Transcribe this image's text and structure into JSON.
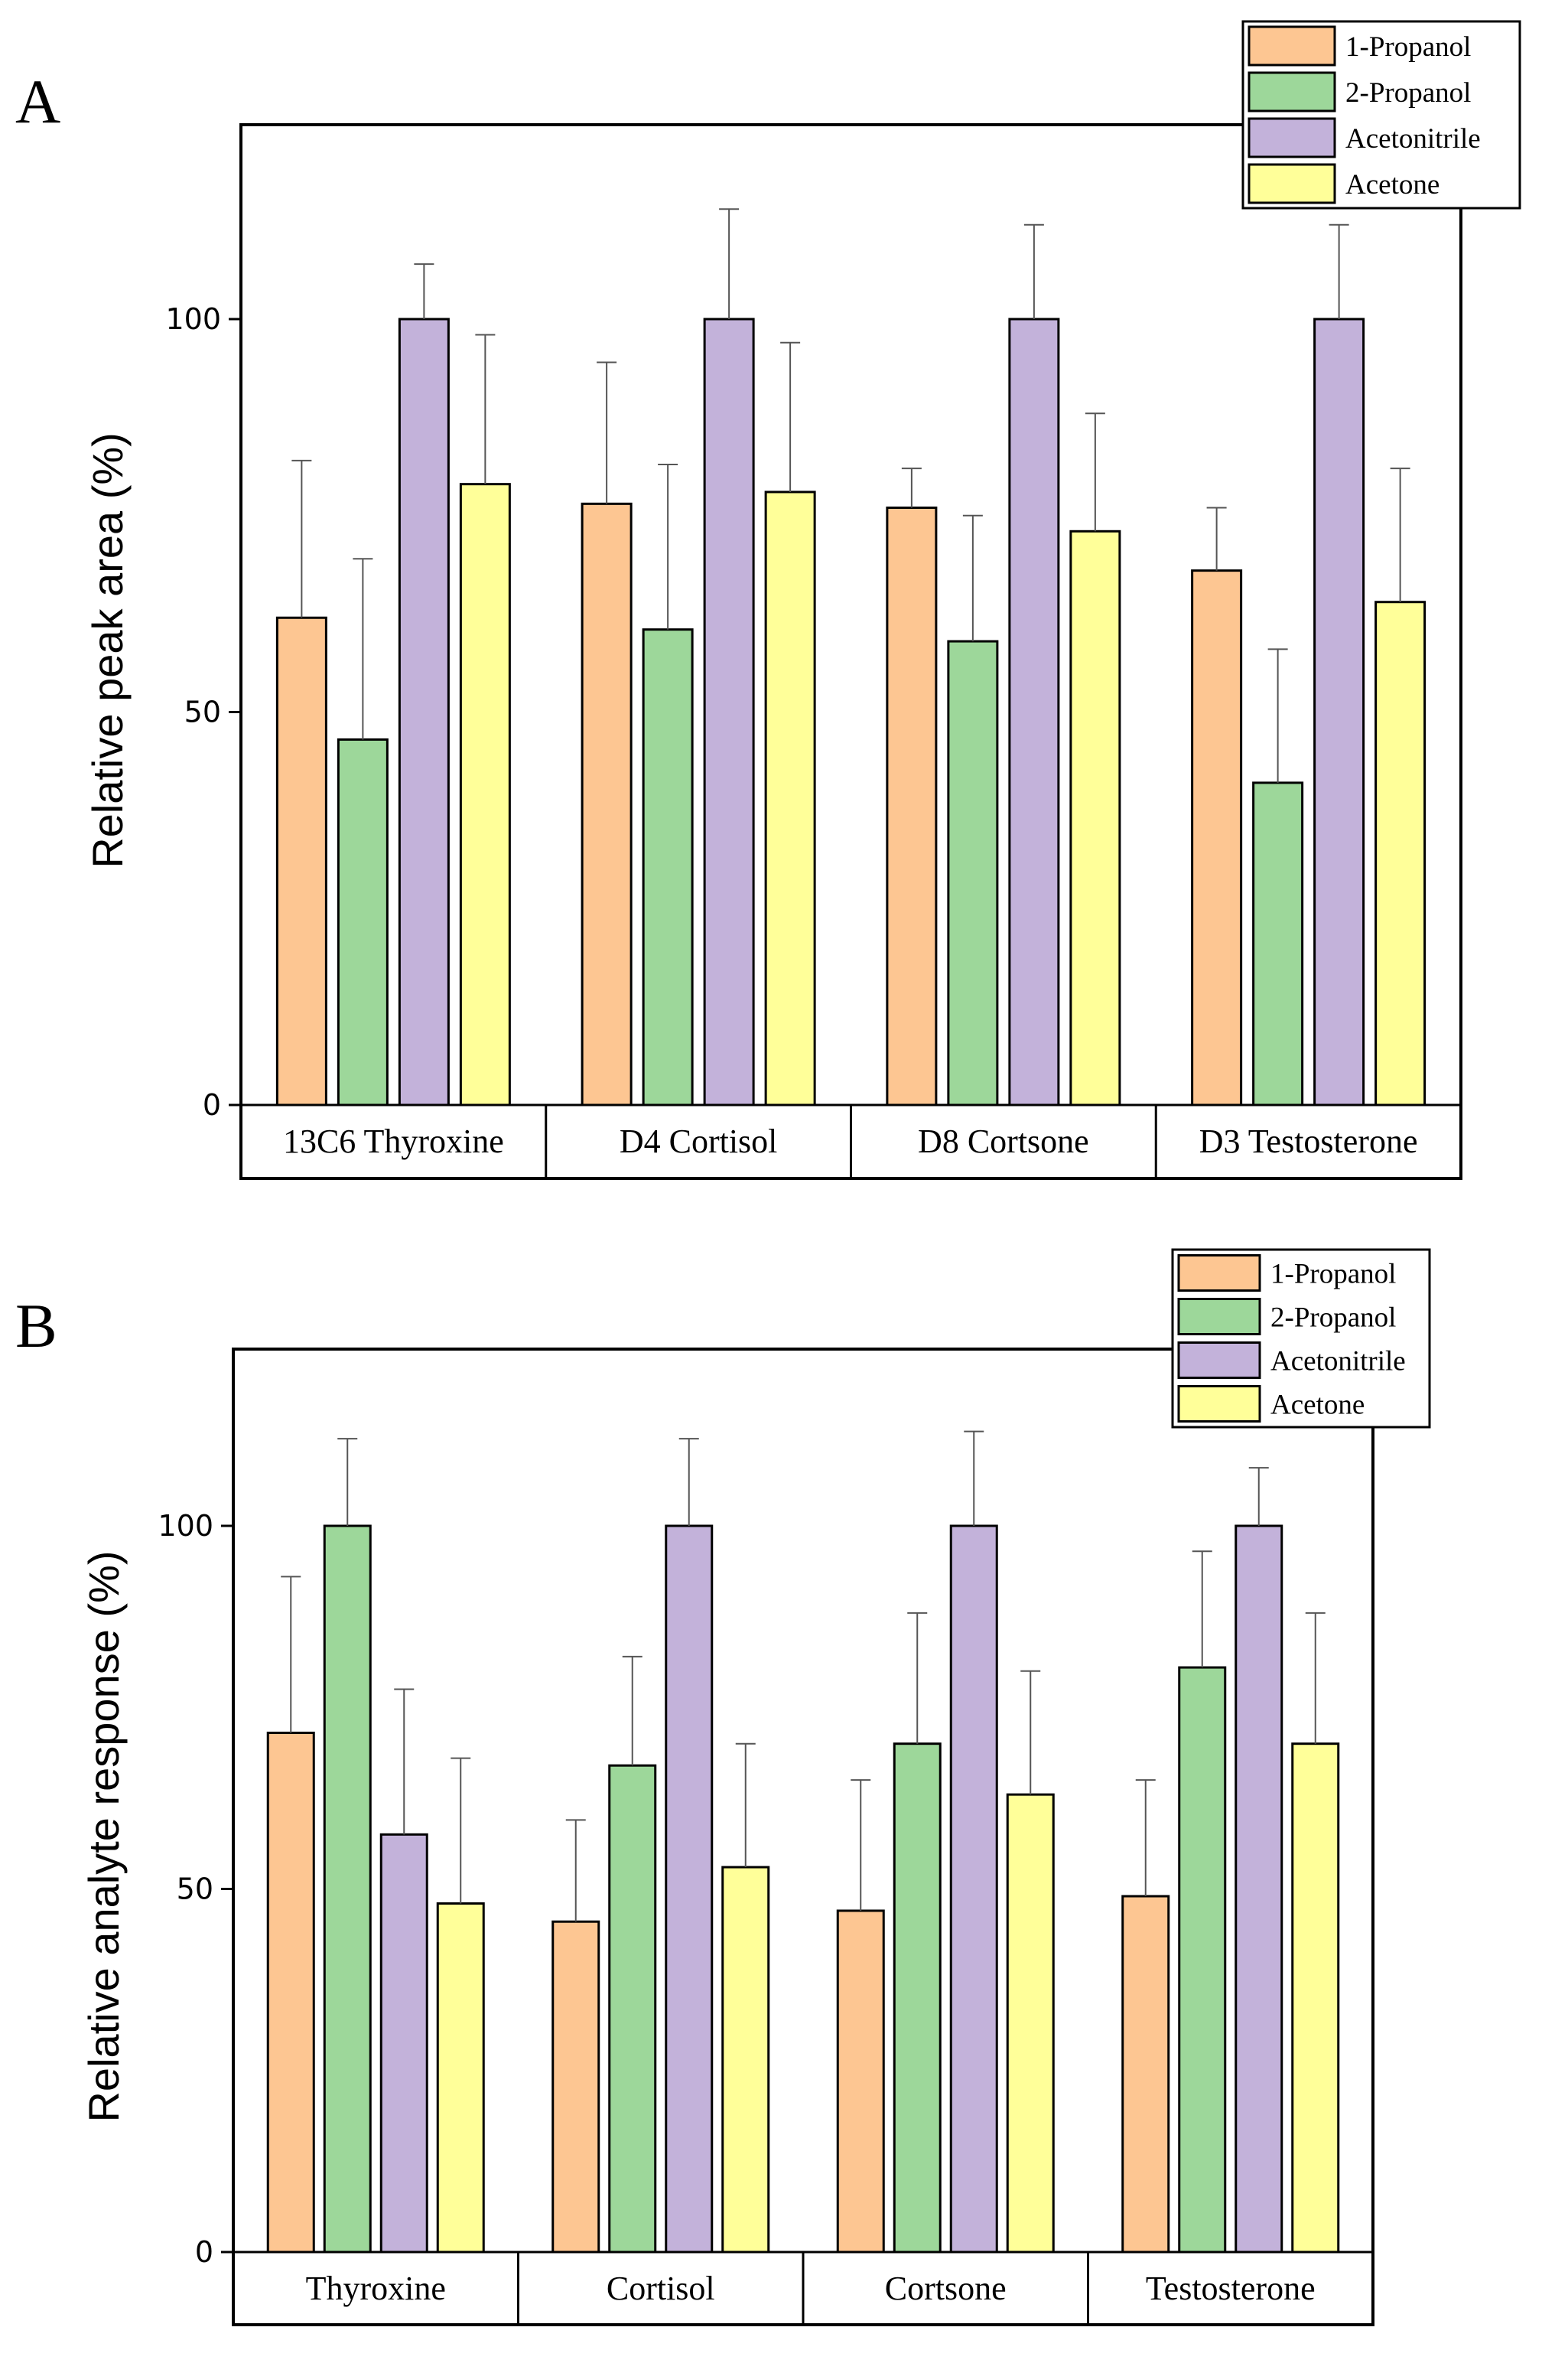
{
  "chart_data": [
    {
      "type": "bar",
      "panel": "A",
      "xlabel": "",
      "ylabel": "Relative peak area (%)",
      "ylim": [
        0,
        125
      ],
      "yticks": [
        0,
        50,
        100
      ],
      "grid": false,
      "legend_position": "top-right",
      "categories": [
        "13C6 Thyroxine",
        "D4 Cortisol",
        "D8 Cortsone",
        "D3 Testosterone"
      ],
      "series": [
        {
          "name": "1-Propanol",
          "color": "#FDC692",
          "values": [
            62,
            76.5,
            76,
            68
          ],
          "errors": [
            20,
            18,
            5,
            8
          ]
        },
        {
          "name": "2-Propanol",
          "color": "#9DD79A",
          "values": [
            46.5,
            60.5,
            59,
            41
          ],
          "errors": [
            23,
            21,
            16,
            17
          ]
        },
        {
          "name": "Acetonitrile",
          "color": "#C3B2DA",
          "values": [
            100,
            100,
            100,
            100
          ],
          "errors": [
            7,
            14,
            12,
            12
          ]
        },
        {
          "name": "Acetone",
          "color": "#FFFF99",
          "values": [
            79,
            78,
            73,
            64
          ],
          "errors": [
            19,
            19,
            15,
            17
          ]
        }
      ]
    },
    {
      "type": "bar",
      "panel": "B",
      "xlabel": "",
      "ylabel": "Relative analyte response (%)",
      "ylim": [
        0,
        125
      ],
      "yticks": [
        0,
        50,
        100
      ],
      "grid": false,
      "legend_position": "top-right",
      "categories": [
        "Thyroxine",
        "Cortisol",
        "Cortsone",
        "Testosterone"
      ],
      "series": [
        {
          "name": "1-Propanol",
          "color": "#FDC692",
          "values": [
            71.5,
            45.5,
            47,
            49
          ],
          "errors": [
            21.5,
            14,
            18,
            16
          ]
        },
        {
          "name": "2-Propanol",
          "color": "#9DD79A",
          "values": [
            100,
            67,
            70,
            80.5
          ],
          "errors": [
            12,
            15,
            18,
            16
          ]
        },
        {
          "name": "Acetonitrile",
          "color": "#C3B2DA",
          "values": [
            57.5,
            100,
            100,
            100
          ],
          "errors": [
            20,
            12,
            13,
            8
          ]
        },
        {
          "name": "Acetone",
          "color": "#FFFF99",
          "values": [
            48,
            53,
            63,
            70
          ],
          "errors": [
            20,
            17,
            17,
            18
          ]
        }
      ]
    }
  ]
}
